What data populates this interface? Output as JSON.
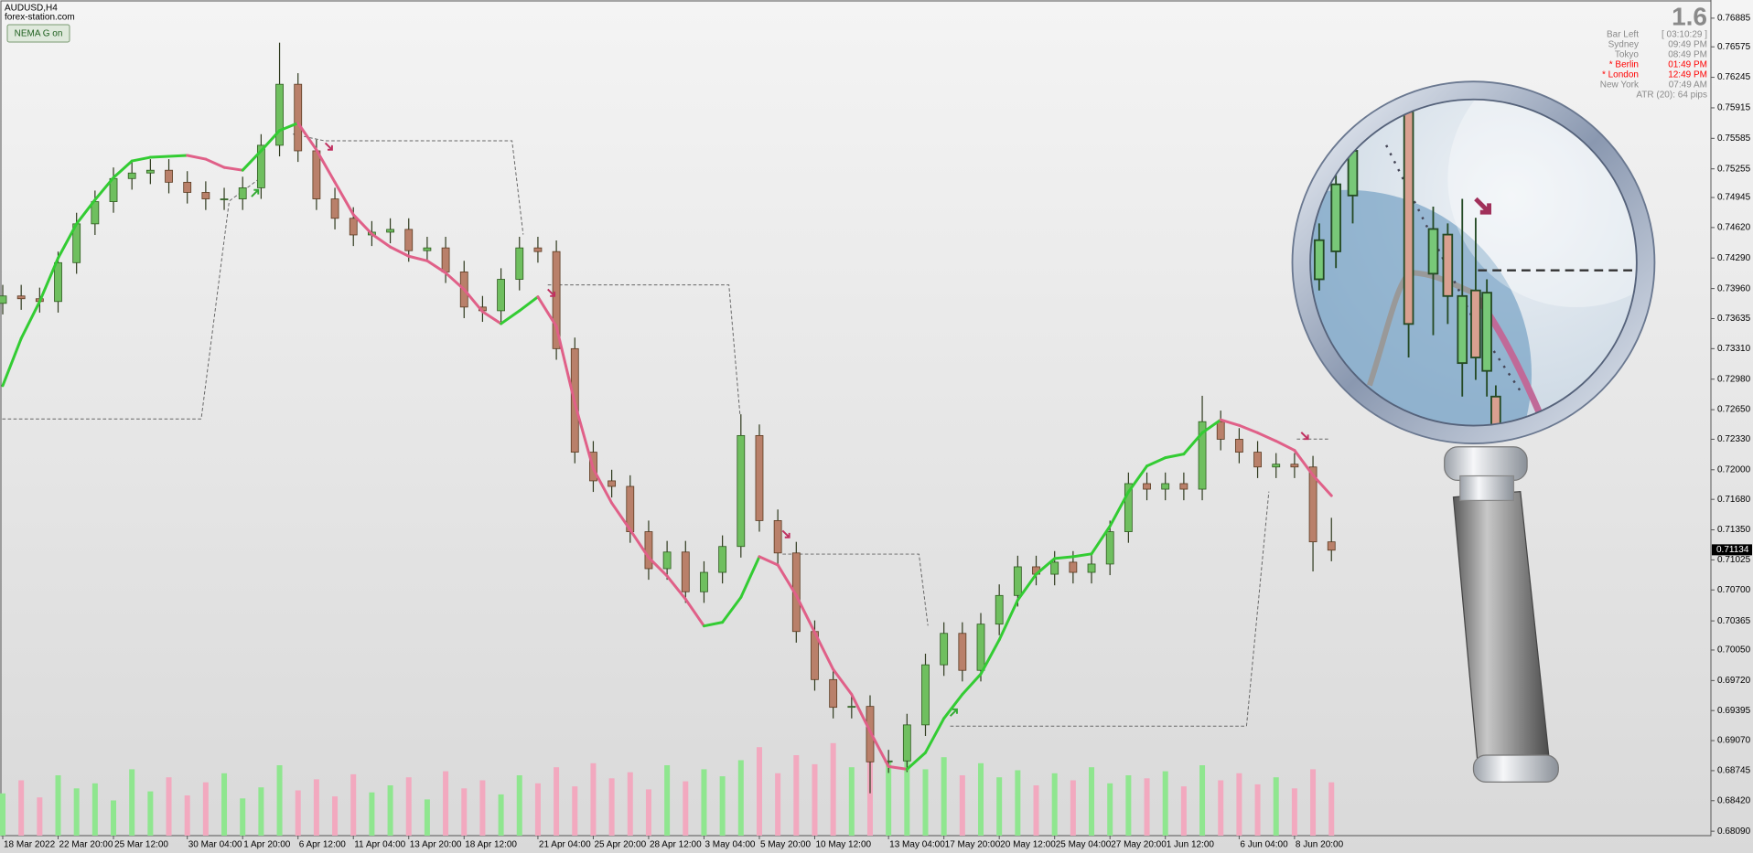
{
  "header": {
    "symbol": "AUDUSD,H4",
    "site": "forex-station.com",
    "button": "NEMA G on"
  },
  "info_panel": {
    "version": "1.6",
    "bar_left_label": "Bar Left",
    "bar_left": "[ 03:10:29 ]",
    "sessions": [
      {
        "city": "Sydney",
        "time": "09:49 PM",
        "color": "#8a8a8a"
      },
      {
        "city": "Tokyo",
        "time": "08:49 PM",
        "color": "#8a8a8a"
      },
      {
        "city": "* Berlin",
        "time": "01:49 PM",
        "color": "#ff0000"
      },
      {
        "city": "* London",
        "time": "12:49 PM",
        "color": "#ff0000"
      },
      {
        "city": "New York",
        "time": "07:49 AM",
        "color": "#8a8a8a"
      }
    ],
    "atr": "ATR (20): 64 pips"
  },
  "chart_data": {
    "type": "candlestick",
    "categories": [
      "18 Mar 2022",
      null,
      null,
      "22 Mar 20:00",
      null,
      null,
      "25 Mar 12:00",
      null,
      null,
      null,
      "30 Mar 04:00",
      null,
      null,
      "1 Apr 20:00",
      null,
      null,
      "6 Apr 12:00",
      null,
      null,
      "11 Apr 04:00",
      null,
      null,
      "13 Apr 20:00",
      null,
      null,
      "18 Apr 12:00",
      null,
      null,
      null,
      "21 Apr 04:00",
      null,
      null,
      "25 Apr 20:00",
      null,
      null,
      "28 Apr 12:00",
      null,
      null,
      "3 May 04:00",
      null,
      null,
      "5 May 20:00",
      null,
      null,
      "10 May 12:00",
      null,
      null,
      null,
      "13 May 04:00",
      null,
      null,
      "17 May 20:00",
      null,
      null,
      "20 May 12:00",
      null,
      null,
      "25 May 04:00",
      null,
      null,
      "27 May 20:00",
      null,
      null,
      "1 Jun 12:00",
      null,
      null,
      null,
      "6 Jun 04:00",
      null,
      null,
      "8 Jun 20:00",
      null,
      null
    ],
    "open": [
      0.738,
      0.7388,
      0.7385,
      0.7382,
      0.7424,
      0.7466,
      0.749,
      0.7515,
      0.7521,
      0.7524,
      0.7511,
      0.75,
      0.7493,
      0.7493,
      0.7505,
      0.7551,
      0.7617,
      0.7545,
      0.7493,
      0.7472,
      0.7454,
      0.7457,
      0.746,
      0.7437,
      0.744,
      0.7414,
      0.7376,
      0.7372,
      0.7406,
      0.744,
      0.7436,
      0.7331,
      0.7219,
      0.7188,
      0.7182,
      0.7133,
      0.7093,
      0.7111,
      0.7068,
      0.7089,
      0.7117,
      0.7237,
      0.7145,
      0.711,
      0.7025,
      0.6973,
      0.6943,
      0.6944,
      0.6884,
      0.6885,
      0.6924,
      0.6989,
      0.7023,
      0.6983,
      0.7033,
      0.7064,
      0.7095,
      0.7087,
      0.71,
      0.7089,
      0.7098,
      0.7133,
      0.7185,
      0.7179,
      0.7185,
      0.7179,
      0.7252,
      0.7233,
      0.7219,
      0.7203,
      0.7206,
      0.7203,
      0.7122
    ],
    "high": [
      0.74,
      0.74,
      0.7397,
      0.7436,
      0.7478,
      0.7502,
      0.7527,
      0.7533,
      0.7536,
      0.7536,
      0.7523,
      0.7512,
      0.7505,
      0.7517,
      0.7563,
      0.7662,
      0.7629,
      0.7557,
      0.7505,
      0.7484,
      0.7469,
      0.7472,
      0.7472,
      0.7452,
      0.7452,
      0.7426,
      0.7388,
      0.7418,
      0.7452,
      0.7452,
      0.7448,
      0.7343,
      0.7231,
      0.72,
      0.7194,
      0.7145,
      0.7123,
      0.7123,
      0.7101,
      0.7129,
      0.726,
      0.7249,
      0.7157,
      0.7122,
      0.7037,
      0.6985,
      0.6956,
      0.6956,
      0.6897,
      0.6936,
      0.7001,
      0.7035,
      0.7035,
      0.7045,
      0.7076,
      0.7107,
      0.7107,
      0.7112,
      0.7112,
      0.711,
      0.7145,
      0.7197,
      0.7197,
      0.7197,
      0.7197,
      0.728,
      0.7264,
      0.7245,
      0.7231,
      0.7218,
      0.7218,
      0.7215,
      0.7148
    ],
    "low": [
      0.7368,
      0.7373,
      0.737,
      0.737,
      0.7412,
      0.7454,
      0.7478,
      0.7503,
      0.7509,
      0.7499,
      0.7488,
      0.7481,
      0.7481,
      0.7481,
      0.7493,
      0.7539,
      0.7533,
      0.7481,
      0.746,
      0.7442,
      0.7442,
      0.7445,
      0.7425,
      0.7425,
      0.7402,
      0.7364,
      0.736,
      0.736,
      0.7394,
      0.7424,
      0.7319,
      0.7207,
      0.7176,
      0.717,
      0.7121,
      0.7081,
      0.7081,
      0.7056,
      0.7056,
      0.7077,
      0.7105,
      0.7133,
      0.7098,
      0.7013,
      0.6961,
      0.6931,
      0.6931,
      0.685,
      0.6872,
      0.6873,
      0.6912,
      0.6977,
      0.6971,
      0.6971,
      0.7021,
      0.7052,
      0.7075,
      0.7075,
      0.7077,
      0.7077,
      0.7086,
      0.7121,
      0.7167,
      0.7167,
      0.7167,
      0.7167,
      0.7221,
      0.7207,
      0.7191,
      0.7191,
      0.7191,
      0.709,
      0.7101
    ],
    "close": [
      0.7388,
      0.7385,
      0.7382,
      0.7424,
      0.7466,
      0.749,
      0.7515,
      0.7521,
      0.7524,
      0.7511,
      0.75,
      0.7493,
      0.7493,
      0.7505,
      0.7551,
      0.7617,
      0.7545,
      0.7493,
      0.7472,
      0.7454,
      0.7457,
      0.746,
      0.7437,
      0.744,
      0.7414,
      0.7376,
      0.7372,
      0.7406,
      0.744,
      0.7436,
      0.7331,
      0.7219,
      0.7188,
      0.7182,
      0.7133,
      0.7093,
      0.7111,
      0.7068,
      0.7089,
      0.7117,
      0.7237,
      0.7145,
      0.711,
      0.7025,
      0.6973,
      0.6943,
      0.6944,
      0.6884,
      0.6885,
      0.6924,
      0.6989,
      0.7023,
      0.6983,
      0.7033,
      0.7064,
      0.7095,
      0.7087,
      0.71,
      0.7089,
      0.7098,
      0.7133,
      0.7185,
      0.7179,
      0.7185,
      0.7179,
      0.7252,
      0.7233,
      0.7219,
      0.7203,
      0.7206,
      0.7203,
      0.7122,
      0.7113
    ],
    "ma": [
      0.7291,
      0.7342,
      0.7382,
      0.7429,
      0.7466,
      0.7492,
      0.7516,
      0.7534,
      0.7538,
      0.7539,
      0.754,
      0.7536,
      0.7527,
      0.7524,
      0.7545,
      0.7567,
      0.7575,
      0.7546,
      0.7511,
      0.7476,
      0.7455,
      0.7441,
      0.7431,
      0.7426,
      0.7413,
      0.7395,
      0.7371,
      0.7358,
      0.7372,
      0.7387,
      0.7355,
      0.7272,
      0.7201,
      0.7164,
      0.7135,
      0.7105,
      0.7085,
      0.706,
      0.7031,
      0.7035,
      0.7062,
      0.7106,
      0.7097,
      0.7064,
      0.7024,
      0.6984,
      0.6957,
      0.6917,
      0.6879,
      0.6876,
      0.6894,
      0.6931,
      0.6957,
      0.6979,
      0.7016,
      0.7059,
      0.7087,
      0.7104,
      0.7106,
      0.7109,
      0.7139,
      0.7176,
      0.7204,
      0.7213,
      0.7217,
      0.724,
      0.7254,
      0.7248,
      0.724,
      0.7231,
      0.7221,
      0.7194,
      0.7172
    ],
    "volume": [
      42,
      55,
      38,
      60,
      47,
      52,
      35,
      66,
      44,
      58,
      40,
      53,
      62,
      37,
      48,
      70,
      45,
      56,
      39,
      61,
      43,
      50,
      58,
      36,
      64,
      47,
      55,
      41,
      60,
      52,
      68,
      49,
      72,
      57,
      63,
      46,
      70,
      54,
      66,
      59,
      75,
      88,
      62,
      80,
      71,
      92,
      68,
      85,
      74,
      90,
      66,
      78,
      60,
      72,
      58,
      65,
      50,
      62,
      55,
      68,
      52,
      60,
      57,
      64,
      49,
      70,
      55,
      62,
      51,
      58,
      47,
      66,
      53
    ],
    "up_color": "#6fbf5f",
    "down_color": "#b9806a",
    "ma_up_color": "#33cc33",
    "ma_down_color": "#e06088",
    "volume_up_color": "#8fe68f",
    "volume_down_color": "#f2a9bf",
    "current_price": 0.71134,
    "ylim": [
      0.68042,
      0.77042
    ],
    "yticks": [
      0.76885,
      0.76575,
      0.76245,
      0.75915,
      0.75585,
      0.75255,
      0.74945,
      {
        "value": 0.7462,
        "label": "0.74620"
      },
      {
        "value": 0.7429,
        "label": "0.74290"
      },
      {
        "value": 0.7396,
        "label": "0.73960"
      },
      0.73635,
      {
        "value": 0.7331,
        "label": "0.73310"
      },
      {
        "value": 0.7298,
        "label": "0.72980"
      },
      {
        "value": 0.7265,
        "label": "0.72650"
      },
      {
        "value": 0.7233,
        "label": "0.72330"
      },
      {
        "value": 0.72,
        "label": "0.72000"
      },
      {
        "value": 0.7168,
        "label": "0.71680"
      },
      {
        "value": 0.7135,
        "label": "0.71350"
      },
      0.71025,
      {
        "value": 0.707,
        "label": "0.70700"
      },
      0.70365,
      {
        "value": 0.7005,
        "label": "0.70050"
      },
      {
        "value": 0.6972,
        "label": "0.69720"
      },
      0.69395,
      {
        "value": 0.6907,
        "label": "0.69070"
      },
      0.68745,
      {
        "value": 0.6842,
        "label": "0.68420"
      },
      {
        "value": 0.6809,
        "label": "0.68090"
      }
    ]
  }
}
